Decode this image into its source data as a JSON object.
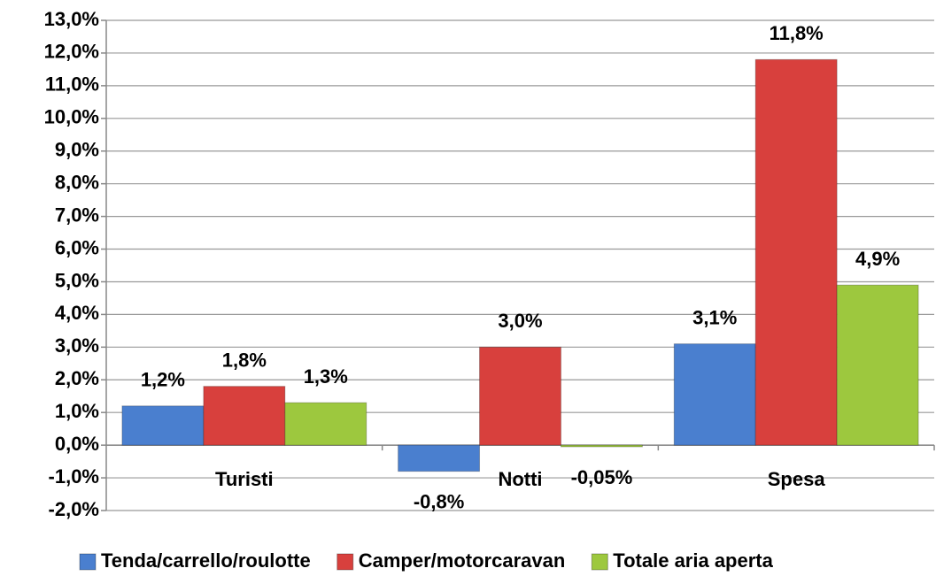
{
  "chart_data": {
    "type": "bar",
    "categories": [
      "Turisti",
      "Notti",
      "Spesa"
    ],
    "series": [
      {
        "name": "Tenda/carrello/roulotte",
        "color": "#4a7fcf",
        "values": [
          1.2,
          -0.8,
          3.1
        ],
        "value_labels": [
          "1,2%",
          "-0,8%",
          "3,1%"
        ]
      },
      {
        "name": "Camper/motorcaravan",
        "color": "#d8403d",
        "values": [
          1.8,
          3.0,
          11.8
        ],
        "value_labels": [
          "1,8%",
          "3,0%",
          "11,8%"
        ]
      },
      {
        "name": "Totale aria aperta",
        "color": "#9dc83e",
        "values": [
          1.3,
          -0.05,
          4.9
        ],
        "value_labels": [
          "1,3%",
          "-0,05%",
          "4,9%"
        ]
      }
    ],
    "ylim": [
      -2,
      13
    ],
    "yticks": [
      {
        "value": -2,
        "label": "-2,0%"
      },
      {
        "value": -1,
        "label": "-1,0%"
      },
      {
        "value": 0,
        "label": "0,0%"
      },
      {
        "value": 1,
        "label": "1,0%"
      },
      {
        "value": 2,
        "label": "2,0%"
      },
      {
        "value": 3,
        "label": "3,0%"
      },
      {
        "value": 4,
        "label": "4,0%"
      },
      {
        "value": 5,
        "label": "5,0%"
      },
      {
        "value": 6,
        "label": "6,0%"
      },
      {
        "value": 7,
        "label": "7,0%"
      },
      {
        "value": 8,
        "label": "8,0%"
      },
      {
        "value": 9,
        "label": "9,0%"
      },
      {
        "value": 10,
        "label": "10,0%"
      },
      {
        "value": 11,
        "label": "11,0%"
      },
      {
        "value": 12,
        "label": "12,0%"
      },
      {
        "value": 13,
        "label": "13,0%"
      }
    ],
    "grid": true,
    "legend": "bottom"
  }
}
